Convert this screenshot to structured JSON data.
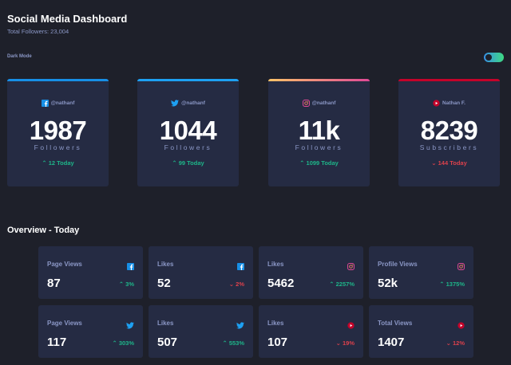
{
  "header": {
    "title": "Social Media Dashboard",
    "subtitle": "Total Followers: 23,004",
    "dark_mode_label": "Dark Mode"
  },
  "colors": {
    "background": "#1e202a",
    "card": "#252b43",
    "up": "#1eb589",
    "down": "#dc414c",
    "facebook": "#178fe6",
    "twitter": "#1da0f2",
    "instagram_gradient": [
      "#fdc468",
      "#df4996"
    ],
    "youtube": "#c4032a"
  },
  "cards": [
    {
      "network": "facebook",
      "icon": "facebook-icon",
      "handle": "@nathanf",
      "count": "1987",
      "label": "Followers",
      "today": "12 Today",
      "trend": "up"
    },
    {
      "network": "twitter",
      "icon": "twitter-icon",
      "handle": "@nathanf",
      "count": "1044",
      "label": "Followers",
      "today": "99 Today",
      "trend": "up"
    },
    {
      "network": "instagram",
      "icon": "instagram-icon",
      "handle": "@nathanf",
      "count": "11k",
      "label": "Followers",
      "today": "1099 Today",
      "trend": "up"
    },
    {
      "network": "youtube",
      "icon": "youtube-icon",
      "handle": "Nathan F.",
      "count": "8239",
      "label": "Subscribers",
      "today": "144 Today",
      "trend": "down"
    }
  ],
  "overview": {
    "title": "Overview - Today",
    "items": [
      {
        "label": "Page Views",
        "icon": "facebook-icon",
        "value": "87",
        "pct": "3%",
        "trend": "up"
      },
      {
        "label": "Likes",
        "icon": "facebook-icon",
        "value": "52",
        "pct": "2%",
        "trend": "down"
      },
      {
        "label": "Likes",
        "icon": "instagram-icon",
        "value": "5462",
        "pct": "2257%",
        "trend": "up"
      },
      {
        "label": "Profile Views",
        "icon": "instagram-icon",
        "value": "52k",
        "pct": "1375%",
        "trend": "up"
      },
      {
        "label": "Page Views",
        "icon": "twitter-icon",
        "value": "117",
        "pct": "303%",
        "trend": "up"
      },
      {
        "label": "Likes",
        "icon": "twitter-icon",
        "value": "507",
        "pct": "553%",
        "trend": "up"
      },
      {
        "label": "Likes",
        "icon": "youtube-icon",
        "value": "107",
        "pct": "19%",
        "trend": "down"
      },
      {
        "label": "Total Views",
        "icon": "youtube-icon",
        "value": "1407",
        "pct": "12%",
        "trend": "down"
      }
    ]
  }
}
